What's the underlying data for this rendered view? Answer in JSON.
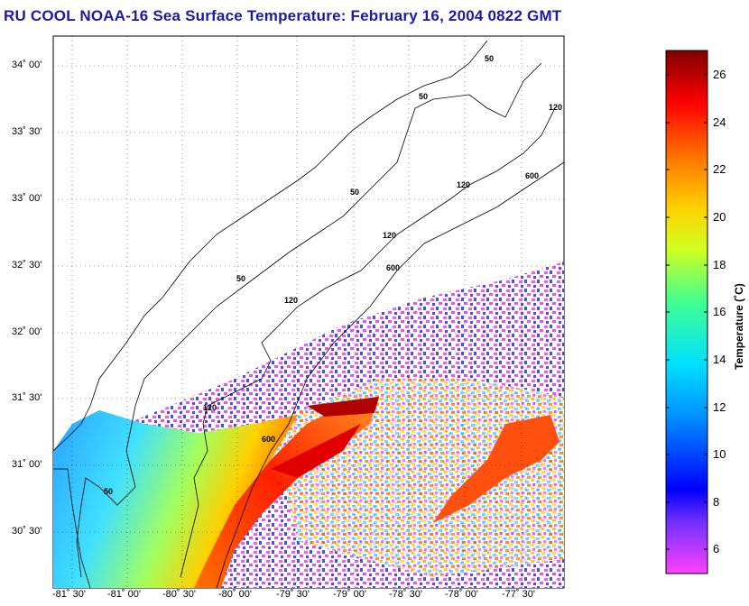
{
  "title": "RU COOL  NOAA-16  Sea Surface Temperature:  February 16, 2004 0822 GMT",
  "lat_labels": [
    "34˚ 00'",
    "33˚ 30'",
    "33˚ 00'",
    "32˚ 30'",
    "32˚ 00'",
    "31˚ 30'",
    "31˚ 00'",
    "30˚ 30'"
  ],
  "lon_labels": [
    "-81˚ 30'",
    "-81˚ 00'",
    "-80˚ 30'",
    "-80˚ 00'",
    "-79˚ 30'",
    "-79˚ 00'",
    "-78˚ 30'",
    "-78˚ 00'",
    "-77˚ 30'"
  ],
  "colorbar": {
    "title": "Temperature (˚C)",
    "ticks": [
      "26",
      "24",
      "22",
      "20",
      "18",
      "16",
      "14",
      "12",
      "10",
      "8",
      "6"
    ],
    "min": 5,
    "max": 27
  },
  "contour_labels": [
    "50",
    "120",
    "600"
  ]
}
